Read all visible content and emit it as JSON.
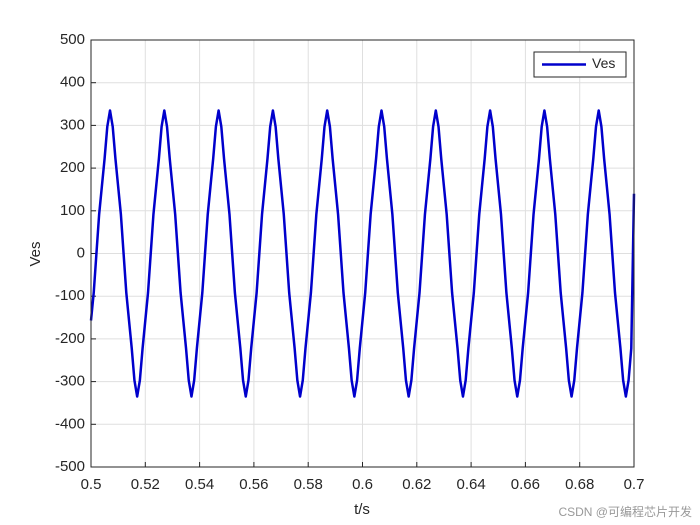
{
  "chart_data": {
    "type": "line",
    "xlabel": "t/s",
    "ylabel": "Ves",
    "xlim": [
      0.5,
      0.7
    ],
    "xticks": [
      0.5,
      0.52,
      0.54,
      0.56,
      0.58,
      0.6,
      0.62,
      0.64,
      0.66,
      0.68,
      0.7
    ],
    "ylim": [
      -500,
      500
    ],
    "yticks": [
      -500,
      -400,
      -300,
      -200,
      -100,
      0,
      100,
      200,
      300,
      400,
      500
    ],
    "grid": true,
    "legend": "upper right",
    "watermark": "CSDN @可编程芯片开发",
    "x": [
      0.5,
      0.501,
      0.502,
      0.503,
      0.504,
      0.505,
      0.506,
      0.507,
      0.508,
      0.509,
      0.51,
      0.511,
      0.512,
      0.513,
      0.514,
      0.515,
      0.516,
      0.517,
      0.518,
      0.519,
      0.52,
      0.521,
      0.522,
      0.523,
      0.524,
      0.525,
      0.526,
      0.527,
      0.528,
      0.529,
      0.53,
      0.531,
      0.532,
      0.533,
      0.534,
      0.535,
      0.536,
      0.537,
      0.538,
      0.539,
      0.54,
      0.541,
      0.542,
      0.543,
      0.544,
      0.545,
      0.546,
      0.547,
      0.548,
      0.549,
      0.55,
      0.551,
      0.552,
      0.553,
      0.554,
      0.555,
      0.556,
      0.557,
      0.558,
      0.559,
      0.56,
      0.561,
      0.562,
      0.563,
      0.564,
      0.565,
      0.566,
      0.567,
      0.568,
      0.569,
      0.57,
      0.571,
      0.572,
      0.573,
      0.574,
      0.575,
      0.576,
      0.577,
      0.578,
      0.579,
      0.58,
      0.581,
      0.582,
      0.583,
      0.584,
      0.585,
      0.586,
      0.587,
      0.588,
      0.589,
      0.59,
      0.591,
      0.592,
      0.593,
      0.594,
      0.595,
      0.596,
      0.597,
      0.598,
      0.599,
      0.6,
      0.601,
      0.602,
      0.603,
      0.604,
      0.605,
      0.606,
      0.607,
      0.608,
      0.609,
      0.61,
      0.611,
      0.612,
      0.613,
      0.614,
      0.615,
      0.616,
      0.617,
      0.618,
      0.619,
      0.62,
      0.621,
      0.622,
      0.623,
      0.624,
      0.625,
      0.626,
      0.627,
      0.628,
      0.629,
      0.63,
      0.631,
      0.632,
      0.633,
      0.634,
      0.635,
      0.636,
      0.637,
      0.638,
      0.639,
      0.64,
      0.641,
      0.642,
      0.643,
      0.644,
      0.645,
      0.646,
      0.647,
      0.648,
      0.649,
      0.65,
      0.651,
      0.652,
      0.653,
      0.654,
      0.655,
      0.656,
      0.657,
      0.658,
      0.659,
      0.66,
      0.661,
      0.662,
      0.663,
      0.664,
      0.665,
      0.666,
      0.667,
      0.668,
      0.669,
      0.67,
      0.671,
      0.672,
      0.673,
      0.674,
      0.675,
      0.676,
      0.677,
      0.678,
      0.679,
      0.68,
      0.681,
      0.682,
      0.683,
      0.684,
      0.685,
      0.686,
      0.687,
      0.688,
      0.689,
      0.69,
      0.691,
      0.692,
      0.693,
      0.694,
      0.695,
      0.696,
      0.697,
      0.698,
      0.699,
      0.7
    ],
    "series": [
      {
        "name": "Ves",
        "color": "#0000cc",
        "values": [
          -157,
          -92,
          0,
          92,
          157,
          222,
          297,
          335,
          297,
          222,
          157,
          92,
          0,
          -92,
          -157,
          -222,
          -297,
          -335,
          -297,
          -222,
          -157,
          -92,
          0,
          92,
          157,
          222,
          297,
          335,
          297,
          222,
          157,
          92,
          0,
          -92,
          -157,
          -222,
          -297,
          -335,
          -297,
          -222,
          -157,
          -92,
          0,
          92,
          157,
          222,
          297,
          335,
          297,
          222,
          157,
          92,
          0,
          -92,
          -157,
          -222,
          -297,
          -335,
          -297,
          -222,
          -157,
          -92,
          0,
          92,
          157,
          222,
          297,
          335,
          297,
          222,
          157,
          92,
          0,
          -92,
          -157,
          -222,
          -297,
          -335,
          -297,
          -222,
          -157,
          -92,
          0,
          92,
          157,
          222,
          297,
          335,
          297,
          222,
          157,
          92,
          0,
          -92,
          -157,
          -222,
          -297,
          -335,
          -297,
          -222,
          -157,
          -92,
          0,
          92,
          157,
          222,
          297,
          335,
          297,
          222,
          157,
          92,
          0,
          -92,
          -157,
          -222,
          -297,
          -335,
          -297,
          -222,
          -157,
          -92,
          0,
          92,
          157,
          222,
          297,
          335,
          297,
          222,
          157,
          92,
          0,
          -92,
          -157,
          -222,
          -297,
          -335,
          -297,
          -222,
          -157,
          -92,
          0,
          92,
          157,
          222,
          297,
          335,
          297,
          222,
          157,
          92,
          0,
          -92,
          -157,
          -222,
          -297,
          -335,
          -297,
          -222,
          -157,
          -92,
          0,
          92,
          157,
          222,
          297,
          335,
          297,
          222,
          157,
          92,
          0,
          -92,
          -157,
          -222,
          -297,
          -335,
          -297,
          -222,
          -157,
          -92,
          0,
          92,
          157,
          222,
          297,
          335,
          297,
          222,
          157,
          92,
          0,
          -92,
          -157,
          -222,
          -297,
          -335,
          -297,
          -222,
          140
        ]
      }
    ]
  }
}
